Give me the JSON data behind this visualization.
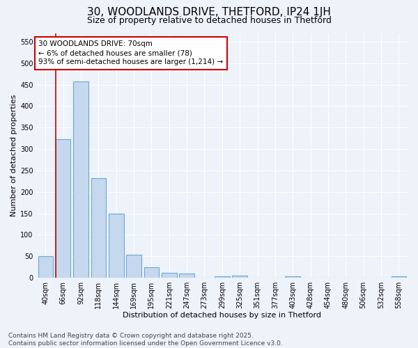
{
  "title": "30, WOODLANDS DRIVE, THETFORD, IP24 1JH",
  "subtitle": "Size of property relative to detached houses in Thetford",
  "xlabel": "Distribution of detached houses by size in Thetford",
  "ylabel": "Number of detached properties",
  "bar_color": "#c5d8ee",
  "bar_edge_color": "#6aaad4",
  "background_color": "#eef2f9",
  "categories": [
    "40sqm",
    "66sqm",
    "92sqm",
    "118sqm",
    "144sqm",
    "169sqm",
    "195sqm",
    "221sqm",
    "247sqm",
    "273sqm",
    "299sqm",
    "325sqm",
    "351sqm",
    "377sqm",
    "403sqm",
    "428sqm",
    "454sqm",
    "480sqm",
    "506sqm",
    "532sqm",
    "558sqm"
  ],
  "values": [
    50,
    322,
    457,
    232,
    149,
    54,
    25,
    11,
    10,
    0,
    4,
    5,
    0,
    0,
    3,
    0,
    0,
    0,
    0,
    0,
    4
  ],
  "ylim": [
    0,
    570
  ],
  "yticks": [
    0,
    50,
    100,
    150,
    200,
    250,
    300,
    350,
    400,
    450,
    500,
    550
  ],
  "vline_x_idx": 1,
  "vline_color": "#cc0000",
  "annotation_text": "30 WOODLANDS DRIVE: 70sqm\n← 6% of detached houses are smaller (78)\n93% of semi-detached houses are larger (1,214) →",
  "footer_line1": "Contains HM Land Registry data © Crown copyright and database right 2025.",
  "footer_line2": "Contains public sector information licensed under the Open Government Licence v3.0.",
  "grid_color": "#ffffff",
  "title_fontsize": 11,
  "subtitle_fontsize": 9,
  "axis_label_fontsize": 8,
  "tick_fontsize": 7,
  "annotation_fontsize": 7.5,
  "footer_fontsize": 6.5
}
